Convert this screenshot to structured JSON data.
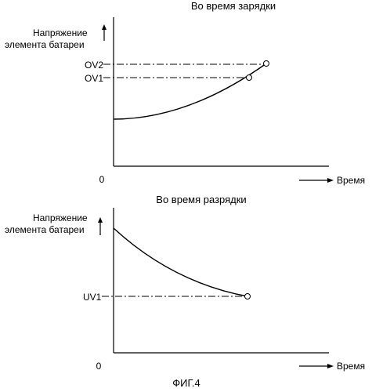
{
  "charging": {
    "title": "Во время зарядки",
    "ylabel_line1": "Напряжение",
    "ylabel_line2": "элемента батареи",
    "xlabel": "Время",
    "origin": "0",
    "levels": [
      "OV2",
      "OV1"
    ]
  },
  "discharging": {
    "title": "Во время разрядки",
    "ylabel_line1": "Напряжение",
    "ylabel_line2": "элемента батареи",
    "xlabel": "Время",
    "origin": "0",
    "levels": [
      "UV1"
    ]
  },
  "caption": "ФИГ.4"
}
